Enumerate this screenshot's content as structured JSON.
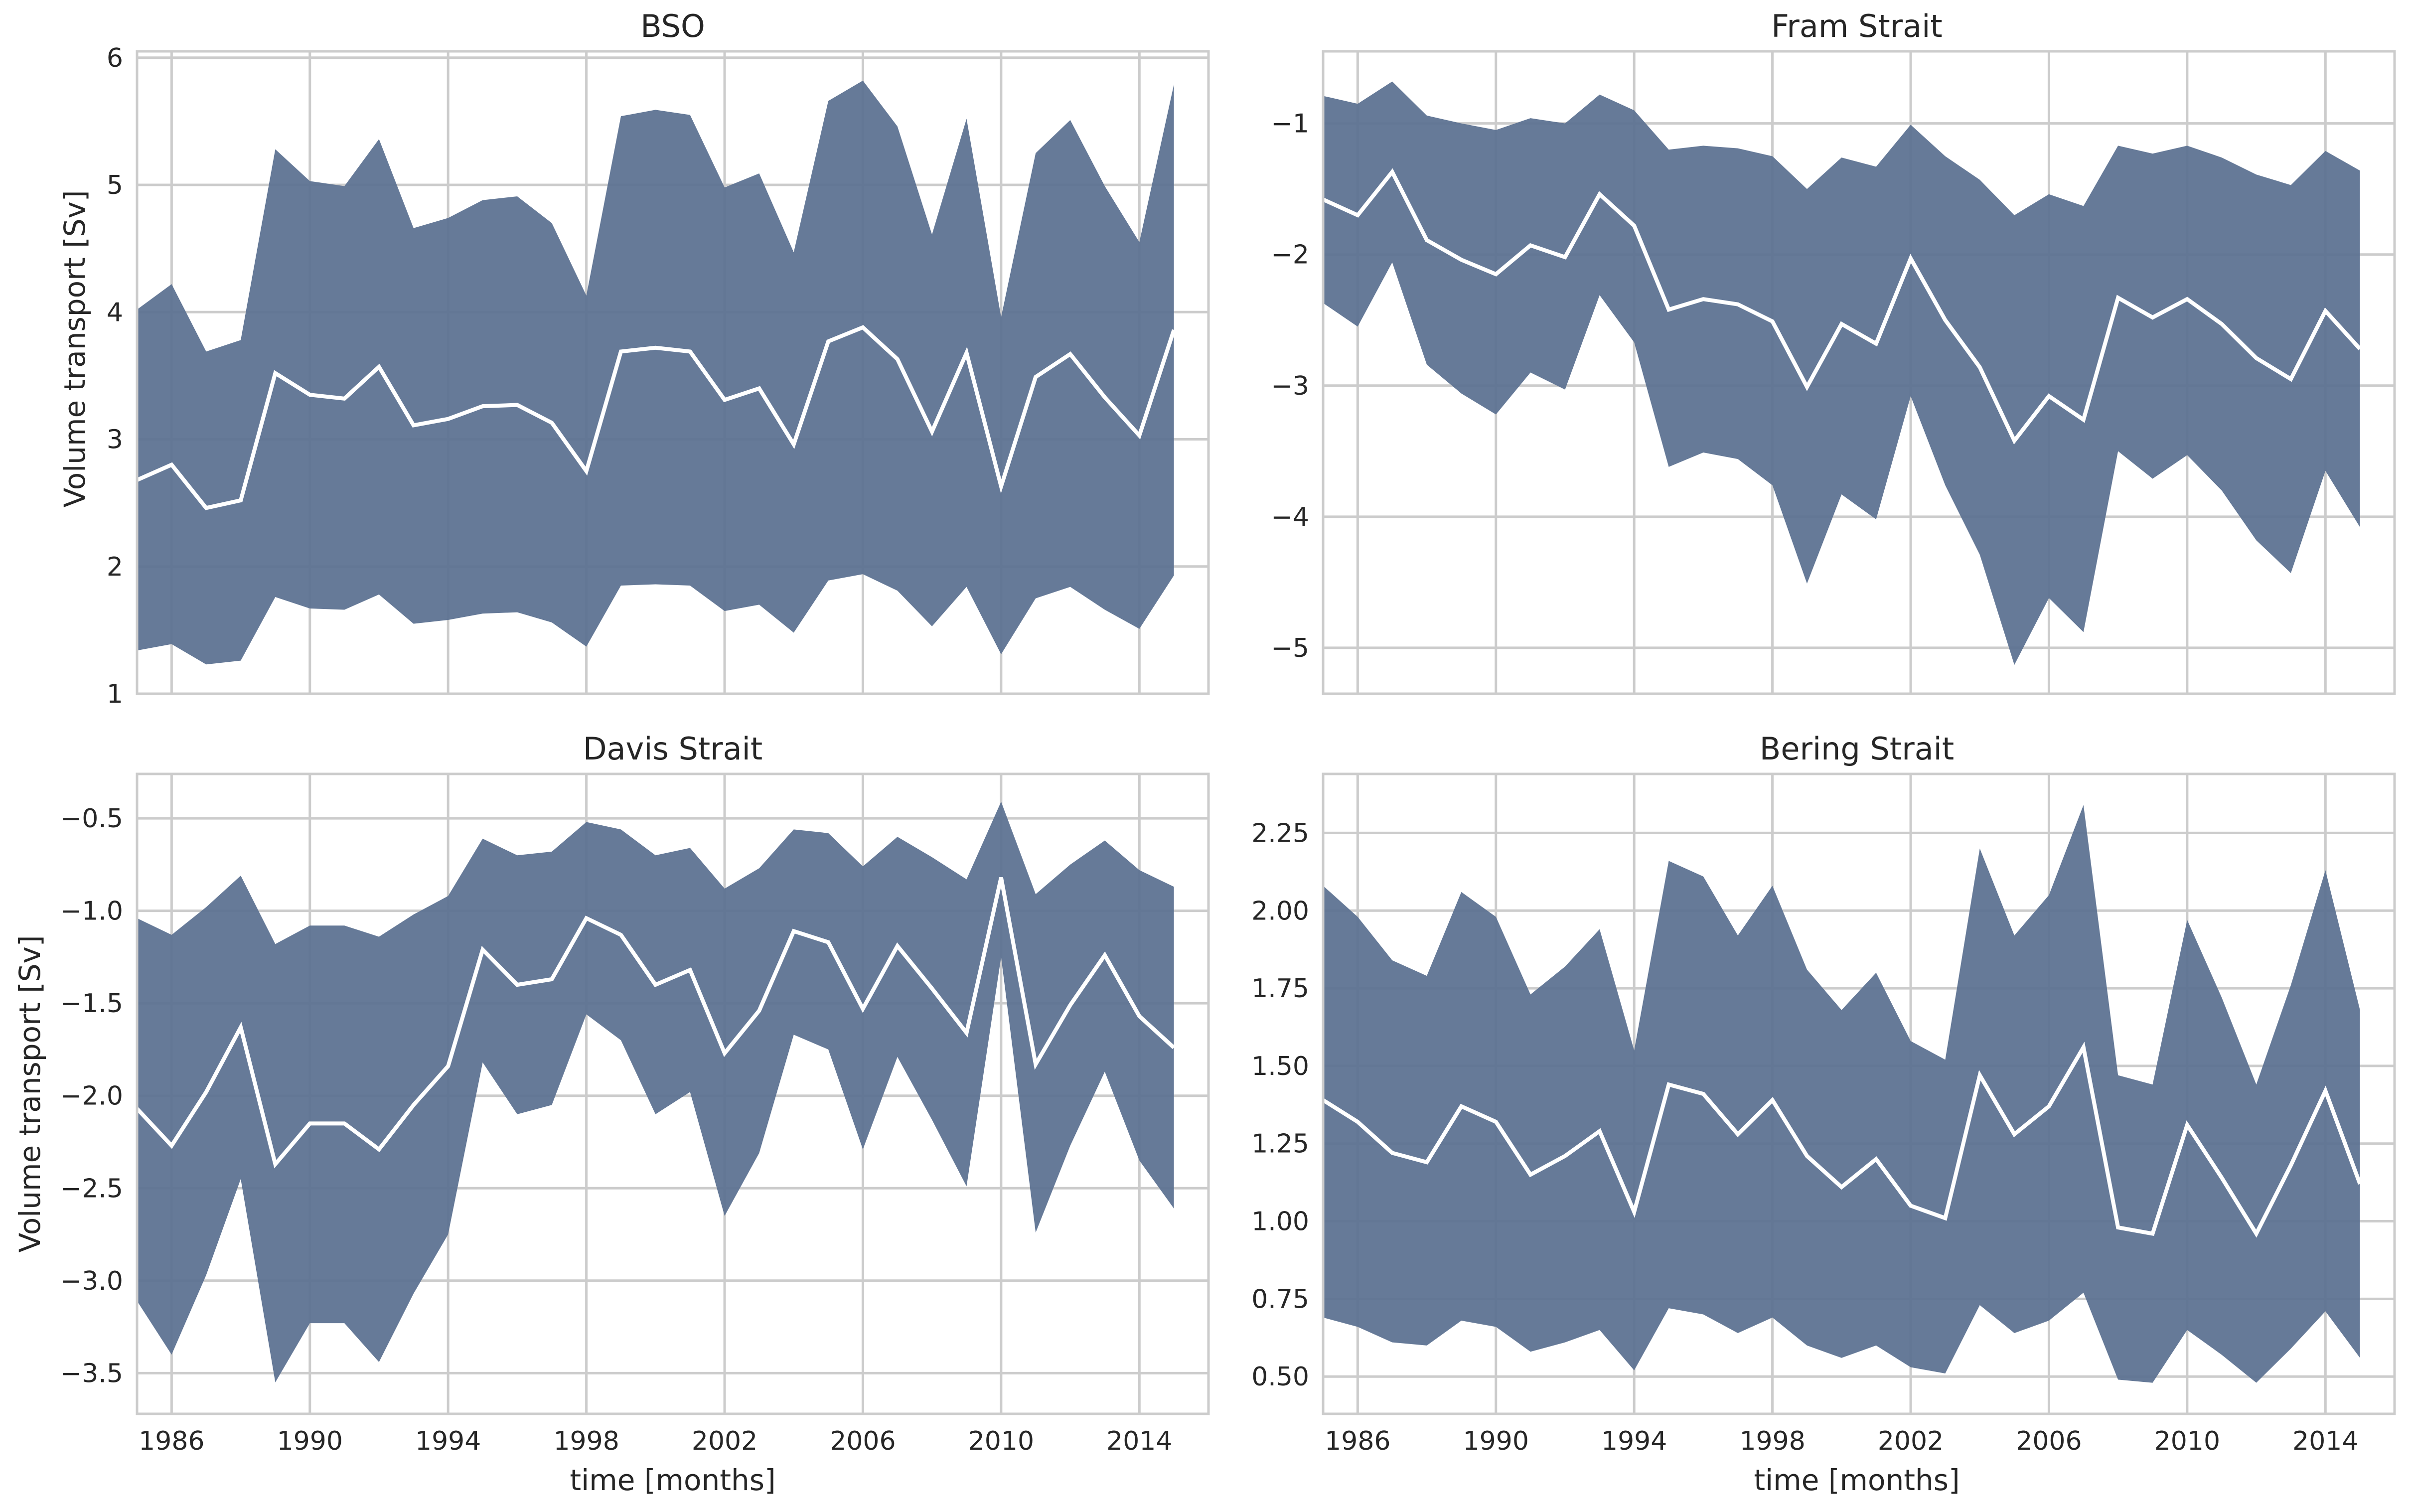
{
  "colors": {
    "band": "#5a7090",
    "mean_line": "#ffffff",
    "grid": "#cccccc",
    "plot_background": "#ffffff",
    "text": "#262626"
  },
  "chart_data": [
    {
      "type": "area",
      "title": "BSO",
      "xlabel": "",
      "ylabel": "Volume transport [Sv]",
      "xlim": [
        1985,
        2016
      ],
      "ylim": [
        1.0,
        6.05
      ],
      "xticks": [
        1986,
        1990,
        1994,
        1998,
        2002,
        2006,
        2010,
        2014
      ],
      "xtick_labels": [],
      "yticks": [
        1,
        2,
        3,
        4,
        5,
        6
      ],
      "ytick_labels": [
        "1",
        "2",
        "3",
        "4",
        "5",
        "6"
      ],
      "grid": true,
      "x": [
        1985,
        1986,
        1987,
        1988,
        1989,
        1990,
        1991,
        1992,
        1993,
        1994,
        1995,
        1996,
        1997,
        1998,
        1999,
        2000,
        2001,
        2002,
        2003,
        2004,
        2005,
        2006,
        2007,
        2008,
        2009,
        2010,
        2011,
        2012,
        2013,
        2014,
        2015
      ],
      "series": [
        {
          "role": "upper",
          "values": [
            4.02,
            4.22,
            3.69,
            3.78,
            5.28,
            5.03,
            4.99,
            5.36,
            4.66,
            4.74,
            4.88,
            4.91,
            4.7,
            4.13,
            5.54,
            5.59,
            5.55,
            4.98,
            5.09,
            4.47,
            5.66,
            5.82,
            5.46,
            4.61,
            5.52,
            3.96,
            5.25,
            5.51,
            4.99,
            4.55,
            5.79
          ]
        },
        {
          "role": "mean",
          "values": [
            2.68,
            2.8,
            2.46,
            2.52,
            3.52,
            3.35,
            3.32,
            3.57,
            3.11,
            3.16,
            3.26,
            3.27,
            3.13,
            2.75,
            3.69,
            3.72,
            3.69,
            3.31,
            3.4,
            2.96,
            3.77,
            3.88,
            3.63,
            3.06,
            3.68,
            2.63,
            3.49,
            3.67,
            3.33,
            3.03,
            3.86
          ]
        },
        {
          "role": "lower",
          "values": [
            1.34,
            1.39,
            1.23,
            1.26,
            1.76,
            1.67,
            1.66,
            1.78,
            1.55,
            1.58,
            1.63,
            1.64,
            1.56,
            1.37,
            1.85,
            1.86,
            1.85,
            1.65,
            1.7,
            1.48,
            1.89,
            1.94,
            1.81,
            1.53,
            1.84,
            1.31,
            1.75,
            1.84,
            1.66,
            1.51,
            1.93
          ]
        }
      ]
    },
    {
      "type": "area",
      "title": "Fram Strait",
      "xlabel": "",
      "ylabel": "",
      "xlim": [
        1985,
        2016
      ],
      "ylim": [
        -5.35,
        -0.45
      ],
      "xticks": [
        1986,
        1990,
        1994,
        1998,
        2002,
        2006,
        2010,
        2014
      ],
      "xtick_labels": [],
      "yticks": [
        -5,
        -4,
        -3,
        -2,
        -1
      ],
      "ytick_labels": [
        "−5",
        "−4",
        "−3",
        "−2",
        "−1"
      ],
      "grid": true,
      "x": [
        1985,
        1986,
        1987,
        1988,
        1989,
        1990,
        1991,
        1992,
        1993,
        1994,
        1995,
        1996,
        1997,
        1998,
        1999,
        2000,
        2001,
        2002,
        2003,
        2004,
        2005,
        2006,
        2007,
        2008,
        2009,
        2010,
        2011,
        2012,
        2013,
        2014,
        2015
      ],
      "series": [
        {
          "role": "upper",
          "values": [
            -0.79,
            -0.85,
            -0.68,
            -0.94,
            -1.0,
            -1.05,
            -0.96,
            -1.0,
            -0.78,
            -0.9,
            -1.2,
            -1.17,
            -1.19,
            -1.25,
            -1.5,
            -1.26,
            -1.33,
            -1.01,
            -1.25,
            -1.43,
            -1.7,
            -1.54,
            -1.63,
            -1.17,
            -1.23,
            -1.17,
            -1.26,
            -1.39,
            -1.47,
            -1.21,
            -1.36
          ]
        },
        {
          "role": "mean",
          "values": [
            -1.58,
            -1.7,
            -1.37,
            -1.89,
            -2.04,
            -2.15,
            -1.93,
            -2.02,
            -1.54,
            -1.78,
            -2.42,
            -2.34,
            -2.38,
            -2.51,
            -3.01,
            -2.53,
            -2.68,
            -2.03,
            -2.5,
            -2.86,
            -3.42,
            -3.08,
            -3.26,
            -2.33,
            -2.48,
            -2.34,
            -2.53,
            -2.79,
            -2.95,
            -2.43,
            -2.72
          ]
        },
        {
          "role": "lower",
          "values": [
            -2.37,
            -2.55,
            -2.06,
            -2.84,
            -3.06,
            -3.22,
            -2.9,
            -3.03,
            -2.31,
            -2.67,
            -3.62,
            -3.51,
            -3.56,
            -3.76,
            -4.51,
            -3.83,
            -4.02,
            -3.08,
            -3.76,
            -4.29,
            -5.13,
            -4.62,
            -4.88,
            -3.5,
            -3.71,
            -3.53,
            -3.8,
            -4.18,
            -4.43,
            -3.65,
            -4.08
          ]
        }
      ]
    },
    {
      "type": "area",
      "title": "Davis Strait",
      "xlabel": "time [months]",
      "ylabel": "Volume transport [Sv]",
      "xlim": [
        1985,
        2016
      ],
      "ylim": [
        -3.72,
        -0.26
      ],
      "xticks": [
        1986,
        1990,
        1994,
        1998,
        2002,
        2006,
        2010,
        2014
      ],
      "xtick_labels": [
        "1986",
        "1990",
        "1994",
        "1998",
        "2002",
        "2006",
        "2010",
        "2014"
      ],
      "yticks": [
        -3.5,
        -3.0,
        -2.5,
        -2.0,
        -1.5,
        -1.0,
        -0.5
      ],
      "ytick_labels": [
        "−3.5",
        "−3.0",
        "−2.5",
        "−2.0",
        "−1.5",
        "−1.0",
        "−0.5"
      ],
      "grid": true,
      "x": [
        1985,
        1986,
        1987,
        1988,
        1989,
        1990,
        1991,
        1992,
        1993,
        1994,
        1995,
        1996,
        1997,
        1998,
        1999,
        2000,
        2001,
        2002,
        2003,
        2004,
        2005,
        2006,
        2007,
        2008,
        2009,
        2010,
        2011,
        2012,
        2013,
        2014,
        2015
      ],
      "series": [
        {
          "role": "upper",
          "values": [
            -1.04,
            -1.13,
            -0.98,
            -0.81,
            -1.18,
            -1.08,
            -1.08,
            -1.14,
            -1.02,
            -0.92,
            -0.61,
            -0.7,
            -0.68,
            -0.52,
            -0.56,
            -0.7,
            -0.66,
            -0.88,
            -0.77,
            -0.56,
            -0.58,
            -0.76,
            -0.6,
            -0.71,
            -0.83,
            -0.41,
            -0.91,
            -0.75,
            -0.62,
            -0.78,
            -0.87
          ]
        },
        {
          "role": "mean",
          "values": [
            -2.07,
            -2.27,
            -1.98,
            -1.63,
            -2.37,
            -2.15,
            -2.15,
            -2.29,
            -2.05,
            -1.84,
            -1.21,
            -1.4,
            -1.37,
            -1.04,
            -1.13,
            -1.4,
            -1.32,
            -1.77,
            -1.54,
            -1.11,
            -1.17,
            -1.53,
            -1.19,
            -1.42,
            -1.66,
            -0.82,
            -1.83,
            -1.51,
            -1.24,
            -1.57,
            -1.74
          ]
        },
        {
          "role": "lower",
          "values": [
            -3.11,
            -3.4,
            -2.97,
            -2.45,
            -3.55,
            -3.23,
            -3.23,
            -3.44,
            -3.07,
            -2.75,
            -1.82,
            -2.1,
            -2.05,
            -1.56,
            -1.7,
            -2.1,
            -1.98,
            -2.65,
            -2.31,
            -1.67,
            -1.75,
            -2.29,
            -1.79,
            -2.13,
            -2.49,
            -1.25,
            -2.74,
            -2.27,
            -1.87,
            -2.35,
            -2.61
          ]
        }
      ]
    },
    {
      "type": "area",
      "title": "Bering Strait",
      "xlabel": "time [months]",
      "ylabel": "",
      "xlim": [
        1985,
        2016
      ],
      "ylim": [
        0.38,
        2.44
      ],
      "xticks": [
        1986,
        1990,
        1994,
        1998,
        2002,
        2006,
        2010,
        2014
      ],
      "xtick_labels": [
        "1986",
        "1990",
        "1994",
        "1998",
        "2002",
        "2006",
        "2010",
        "2014"
      ],
      "yticks": [
        0.5,
        0.75,
        1.0,
        1.25,
        1.5,
        1.75,
        2.0,
        2.25
      ],
      "ytick_labels": [
        "0.50",
        "0.75",
        "1.00",
        "1.25",
        "1.50",
        "1.75",
        "2.00",
        "2.25"
      ],
      "grid": true,
      "x": [
        1985,
        1986,
        1987,
        1988,
        1989,
        1990,
        1991,
        1992,
        1993,
        1994,
        1995,
        1996,
        1997,
        1998,
        1999,
        2000,
        2001,
        2002,
        2003,
        2004,
        2005,
        2006,
        2007,
        2008,
        2009,
        2010,
        2011,
        2012,
        2013,
        2014,
        2015
      ],
      "series": [
        {
          "role": "upper",
          "values": [
            2.08,
            1.98,
            1.84,
            1.79,
            2.06,
            1.98,
            1.73,
            1.82,
            1.94,
            1.55,
            2.16,
            2.11,
            1.92,
            2.08,
            1.81,
            1.68,
            1.8,
            1.58,
            1.52,
            2.2,
            1.92,
            2.05,
            2.34,
            1.47,
            1.44,
            1.97,
            1.72,
            1.44,
            1.76,
            2.13,
            1.68
          ]
        },
        {
          "role": "mean",
          "values": [
            1.39,
            1.32,
            1.22,
            1.19,
            1.37,
            1.32,
            1.15,
            1.21,
            1.29,
            1.03,
            1.44,
            1.41,
            1.28,
            1.39,
            1.21,
            1.11,
            1.2,
            1.05,
            1.01,
            1.47,
            1.28,
            1.37,
            1.56,
            0.98,
            0.96,
            1.31,
            1.14,
            0.96,
            1.18,
            1.42,
            1.12
          ]
        },
        {
          "role": "lower",
          "values": [
            0.69,
            0.66,
            0.61,
            0.6,
            0.68,
            0.66,
            0.58,
            0.61,
            0.65,
            0.52,
            0.72,
            0.7,
            0.64,
            0.69,
            0.6,
            0.56,
            0.6,
            0.53,
            0.51,
            0.73,
            0.64,
            0.68,
            0.77,
            0.49,
            0.48,
            0.65,
            0.57,
            0.48,
            0.59,
            0.71,
            0.56
          ]
        }
      ]
    }
  ]
}
